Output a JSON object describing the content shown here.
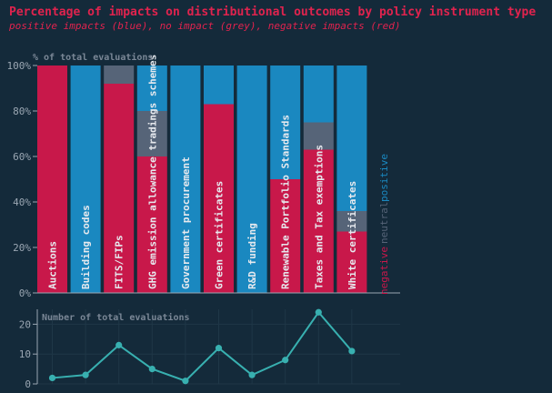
{
  "colors": {
    "background": "#142a3a",
    "title": "#e0234e",
    "positive": "#1a88c0",
    "neutral": "#566478",
    "negative": "#c8184a",
    "axis_text": "#9aa6b2",
    "inset_label": "#7a8796",
    "grid": "#1f3747",
    "line": "#38b0b0"
  },
  "chart_data": [
    {
      "type": "bar",
      "stacked": true,
      "title": "Percentage of impacts on distributional outcomes by policy instrument type",
      "subtitle": "positive impacts (blue), no impact (grey), negative impacts (red)",
      "ylabel": "% of total evaluations",
      "ylim": [
        0,
        100
      ],
      "yticks": [
        "0%",
        "20%",
        "40%",
        "60%",
        "80%",
        "100%"
      ],
      "categories": [
        "Auctions",
        "Building codes",
        "FITS/FIPs",
        "GHG emission allowance tradings schemes",
        "Government procurement",
        "Green certificates",
        "R&D funding",
        "Renewable Portfolio Standards",
        "Taxes and Tax exemptions",
        "White certificates"
      ],
      "series": [
        {
          "name": "negative",
          "values": [
            100,
            0,
            92,
            60,
            0,
            83,
            0,
            50,
            63,
            27
          ]
        },
        {
          "name": "neutral",
          "values": [
            0,
            0,
            8,
            20,
            0,
            0,
            0,
            0,
            12,
            9
          ]
        },
        {
          "name": "positive",
          "values": [
            0,
            100,
            0,
            20,
            100,
            17,
            100,
            50,
            25,
            64
          ]
        }
      ],
      "legend": "right",
      "grid": false
    },
    {
      "type": "line",
      "ylabel": "Number of total evaluations",
      "ylim": [
        0,
        25
      ],
      "yticks": [
        0,
        10,
        20
      ],
      "categories": [
        "Auctions",
        "Building codes",
        "FITS/FIPs",
        "GHG emission allowance tradings schemes",
        "Government procurement",
        "Green certificates",
        "R&D funding",
        "Renewable Portfolio Standards",
        "Taxes and Tax exemptions",
        "White certificates"
      ],
      "values": [
        2,
        3,
        13,
        5,
        1,
        12,
        3,
        8,
        24,
        11
      ],
      "grid": true
    }
  ]
}
